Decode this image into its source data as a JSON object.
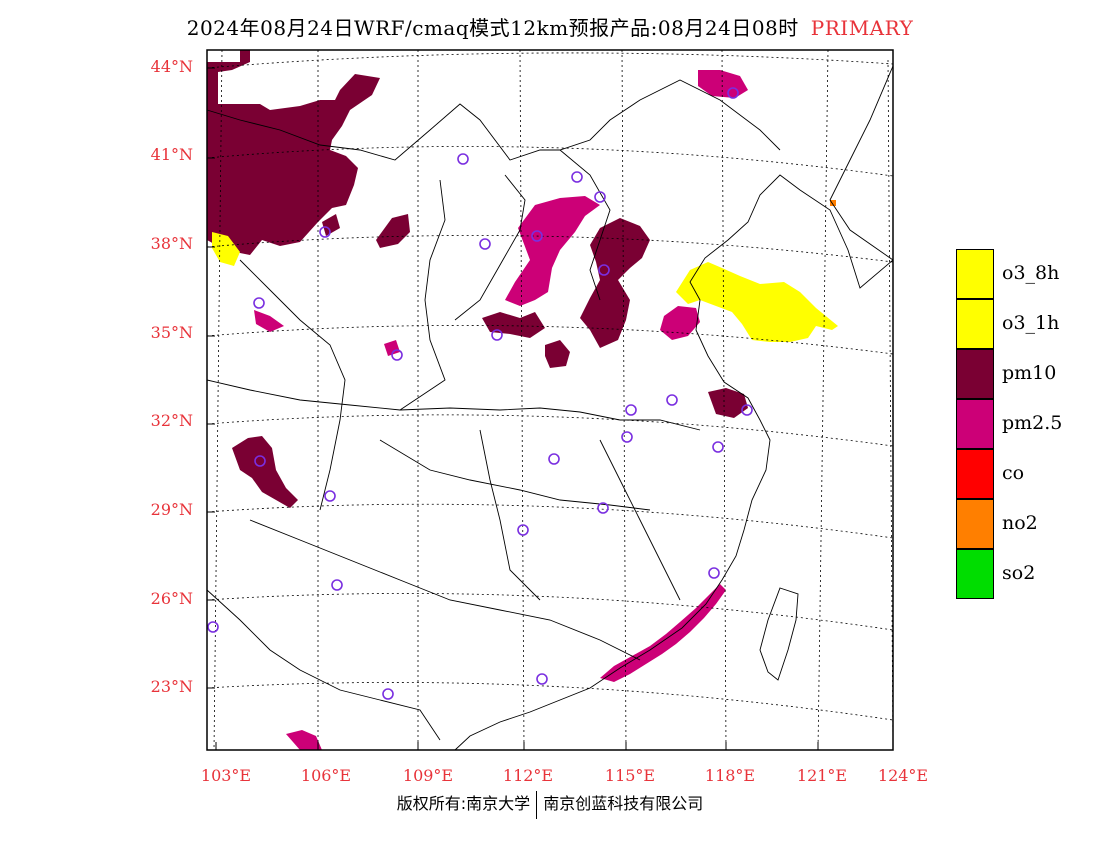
{
  "title": {
    "main": "2024年08月24日WRF/cmaq模式12km预报产品:08月24日08时",
    "tag": "PRIMARY"
  },
  "axes": {
    "lat_labels": [
      "44°N",
      "41°N",
      "38°N",
      "35°N",
      "32°N",
      "29°N",
      "26°N",
      "23°N"
    ],
    "lon_labels": [
      "103°E",
      "106°E",
      "109°E",
      "112°E",
      "115°E",
      "118°E",
      "121°E",
      "124°E"
    ]
  },
  "legend": [
    {
      "label": "o3_8h",
      "color": "#ffff00"
    },
    {
      "label": "o3_1h",
      "color": "#ffff00"
    },
    {
      "label": "pm10",
      "color": "#7a0033"
    },
    {
      "label": "pm2.5",
      "color": "#cc0077"
    },
    {
      "label": "co",
      "color": "#ff0000"
    },
    {
      "label": "no2",
      "color": "#ff7f00"
    },
    {
      "label": "so2",
      "color": "#00dd00"
    }
  ],
  "colors": {
    "label_red": "#e8333a",
    "station_marker": "#7a2fe0"
  },
  "footer": {
    "left": "版权所有:南京大学",
    "right": "南京创蓝科技有限公司"
  }
}
